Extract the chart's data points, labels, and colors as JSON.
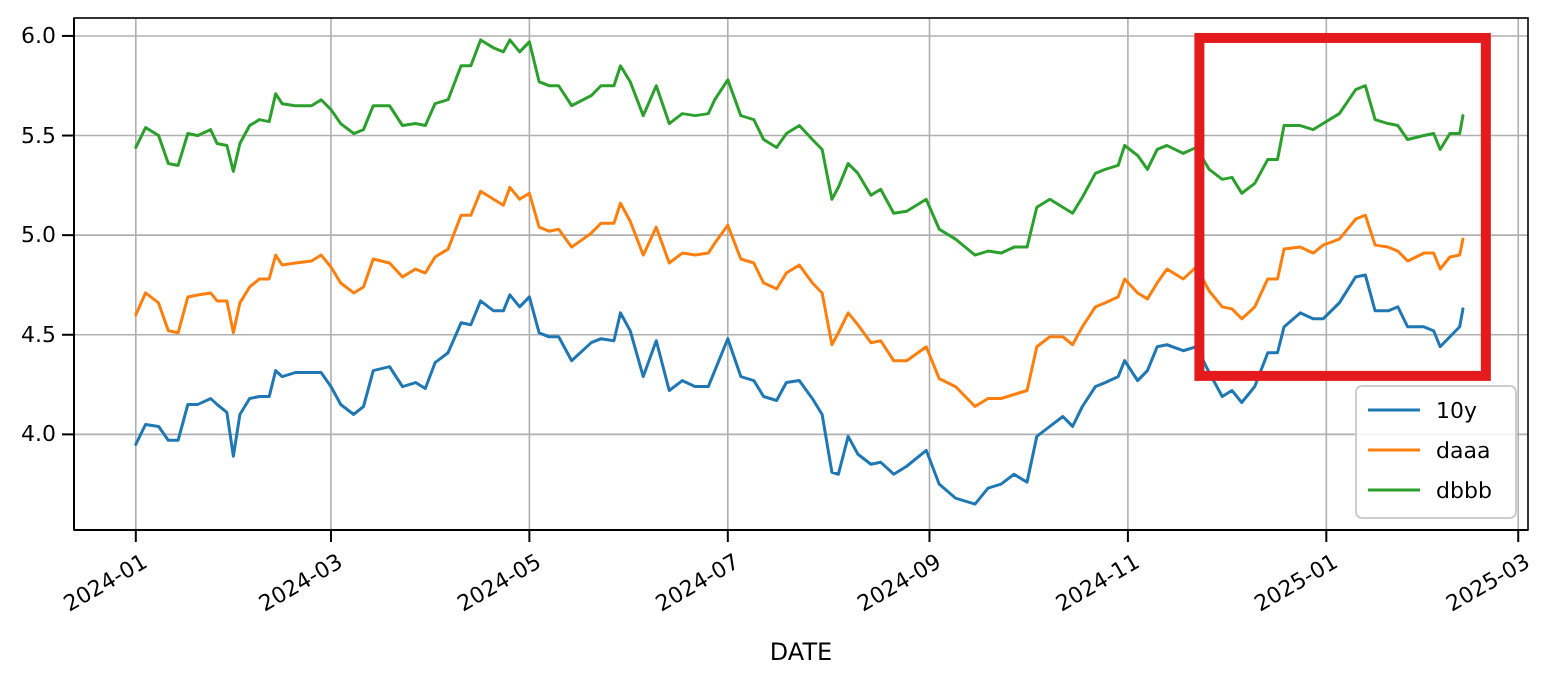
{
  "chart_data": {
    "type": "line",
    "xlabel": "DATE",
    "legend": "bottom right",
    "grid": true,
    "xlim": [
      "2023-12-13",
      "2025-03-04"
    ],
    "ylim": [
      3.52,
      6.09
    ],
    "xticks": [
      "2024-01",
      "2024-03",
      "2024-05",
      "2024-07",
      "2024-09",
      "2024-11",
      "2025-01",
      "2025-03"
    ],
    "yticks": [
      {
        "value": 4,
        "label": "4.0"
      },
      4.5,
      {
        "value": 5,
        "label": "5.0"
      },
      5.5,
      {
        "value": 6,
        "label": "6.0"
      }
    ],
    "x": [
      "2024-01-01",
      "2024-01-04",
      "2024-01-08",
      "2024-01-11",
      "2024-01-14",
      "2024-01-17",
      "2024-01-20",
      "2024-01-24",
      "2024-01-26",
      "2024-01-29",
      "2024-01-31",
      "2024-02-02",
      "2024-02-05",
      "2024-02-08",
      "2024-02-11",
      "2024-02-13",
      "2024-02-15",
      "2024-02-19",
      "2024-02-24",
      "2024-02-27",
      "2024-03-01",
      "2024-03-04",
      "2024-03-08",
      "2024-03-11",
      "2024-03-14",
      "2024-03-19",
      "2024-03-23",
      "2024-03-27",
      "2024-03-30",
      "2024-04-02",
      "2024-04-06",
      "2024-04-10",
      "2024-04-13",
      "2024-04-16",
      "2024-04-20",
      "2024-04-23",
      "2024-04-25",
      "2024-04-28",
      "2024-05-01",
      "2024-05-04",
      "2024-05-07",
      "2024-05-10",
      "2024-05-14",
      "2024-05-20",
      "2024-05-23",
      "2024-05-27",
      "2024-05-29",
      "2024-06-01",
      "2024-06-05",
      "2024-06-09",
      "2024-06-13",
      "2024-06-17",
      "2024-06-21",
      "2024-06-25",
      "2024-06-27",
      "2024-07-01",
      "2024-07-05",
      "2024-07-09",
      "2024-07-12",
      "2024-07-16",
      "2024-07-19",
      "2024-07-23",
      "2024-07-27",
      "2024-07-30",
      "2024-08-02",
      "2024-08-04",
      "2024-08-07",
      "2024-08-10",
      "2024-08-14",
      "2024-08-17",
      "2024-08-21",
      "2024-08-25",
      "2024-08-31",
      "2024-09-04",
      "2024-09-09",
      "2024-09-15",
      "2024-09-19",
      "2024-09-23",
      "2024-09-27",
      "2024-10-01",
      "2024-10-04",
      "2024-10-08",
      "2024-10-12",
      "2024-10-15",
      "2024-10-18",
      "2024-10-22",
      "2024-10-25",
      "2024-10-29",
      "2024-10-31",
      "2024-11-04",
      "2024-11-07",
      "2024-11-10",
      "2024-11-13",
      "2024-11-18",
      "2024-11-22",
      "2024-11-26",
      "2024-11-30",
      "2024-12-03",
      "2024-12-06",
      "2024-12-10",
      "2024-12-14",
      "2024-12-17",
      "2024-12-19",
      "2024-12-24",
      "2024-12-28",
      "2024-12-31",
      "2025-01-05",
      "2025-01-10",
      "2025-01-13",
      "2025-01-16",
      "2025-01-20",
      "2025-01-23",
      "2025-01-26",
      "2025-01-31",
      "2025-02-03",
      "2025-02-05",
      "2025-02-08",
      "2025-02-11",
      "2025-02-12"
    ],
    "series": [
      {
        "name": "10y",
        "color": "#1f77b4",
        "values": [
          3.95,
          4.05,
          4.04,
          3.97,
          3.97,
          4.15,
          4.15,
          4.18,
          4.15,
          4.11,
          3.89,
          4.1,
          4.18,
          4.19,
          4.19,
          4.32,
          4.29,
          4.31,
          4.31,
          4.31,
          4.24,
          4.15,
          4.1,
          4.14,
          4.32,
          4.34,
          4.24,
          4.26,
          4.23,
          4.36,
          4.41,
          4.56,
          4.55,
          4.67,
          4.62,
          4.62,
          4.7,
          4.64,
          4.69,
          4.51,
          4.49,
          4.49,
          4.37,
          4.46,
          4.48,
          4.47,
          4.61,
          4.52,
          4.29,
          4.47,
          4.22,
          4.27,
          4.24,
          4.24,
          4.32,
          4.48,
          4.29,
          4.27,
          4.19,
          4.17,
          4.26,
          4.27,
          4.18,
          4.1,
          3.81,
          3.8,
          3.99,
          3.9,
          3.85,
          3.86,
          3.8,
          3.84,
          3.92,
          3.75,
          3.68,
          3.65,
          3.73,
          3.75,
          3.8,
          3.76,
          3.99,
          4.04,
          4.09,
          4.04,
          4.14,
          4.24,
          4.26,
          4.29,
          4.37,
          4.27,
          4.32,
          4.44,
          4.45,
          4.42,
          4.44,
          4.31,
          4.19,
          4.22,
          4.16,
          4.24,
          4.41,
          4.41,
          4.54,
          4.61,
          4.58,
          4.58,
          4.66,
          4.79,
          4.8,
          4.62,
          4.62,
          4.64,
          4.54,
          4.54,
          4.52,
          4.44,
          4.49,
          4.54,
          4.63
        ]
      },
      {
        "name": "daaa",
        "color": "#ff7f0e",
        "values": [
          4.6,
          4.71,
          4.66,
          4.52,
          4.51,
          4.69,
          4.7,
          4.71,
          4.67,
          4.67,
          4.51,
          4.66,
          4.74,
          4.78,
          4.78,
          4.9,
          4.85,
          4.86,
          4.87,
          4.9,
          4.84,
          4.76,
          4.71,
          4.74,
          4.88,
          4.86,
          4.79,
          4.83,
          4.81,
          4.89,
          4.93,
          5.1,
          5.1,
          5.22,
          5.18,
          5.15,
          5.24,
          5.18,
          5.21,
          5.04,
          5.02,
          5.03,
          4.94,
          5.01,
          5.06,
          5.06,
          5.16,
          5.07,
          4.9,
          5.04,
          4.86,
          4.91,
          4.9,
          4.91,
          4.96,
          5.05,
          4.88,
          4.86,
          4.76,
          4.73,
          4.81,
          4.85,
          4.76,
          4.71,
          4.45,
          4.51,
          4.61,
          4.55,
          4.46,
          4.47,
          4.37,
          4.37,
          4.44,
          4.28,
          4.24,
          4.14,
          4.18,
          4.18,
          4.2,
          4.22,
          4.44,
          4.49,
          4.49,
          4.45,
          4.54,
          4.64,
          4.66,
          4.69,
          4.78,
          4.71,
          4.68,
          4.76,
          4.83,
          4.78,
          4.84,
          4.72,
          4.64,
          4.63,
          4.58,
          4.64,
          4.78,
          4.78,
          4.93,
          4.94,
          4.91,
          4.95,
          4.98,
          5.08,
          5.1,
          4.95,
          4.94,
          4.92,
          4.87,
          4.91,
          4.91,
          4.83,
          4.89,
          4.9,
          4.98
        ]
      },
      {
        "name": "dbbb",
        "color": "#2ca02c",
        "values": [
          5.44,
          5.54,
          5.5,
          5.36,
          5.35,
          5.51,
          5.5,
          5.53,
          5.46,
          5.45,
          5.32,
          5.46,
          5.55,
          5.58,
          5.57,
          5.71,
          5.66,
          5.65,
          5.65,
          5.68,
          5.63,
          5.56,
          5.51,
          5.53,
          5.65,
          5.65,
          5.55,
          5.56,
          5.55,
          5.66,
          5.68,
          5.85,
          5.85,
          5.98,
          5.94,
          5.92,
          5.98,
          5.92,
          5.97,
          5.77,
          5.75,
          5.75,
          5.65,
          5.7,
          5.75,
          5.75,
          5.85,
          5.77,
          5.6,
          5.75,
          5.56,
          5.61,
          5.6,
          5.61,
          5.68,
          5.78,
          5.6,
          5.58,
          5.48,
          5.44,
          5.51,
          5.55,
          5.48,
          5.43,
          5.18,
          5.24,
          5.36,
          5.31,
          5.2,
          5.23,
          5.11,
          5.12,
          5.18,
          5.03,
          4.98,
          4.9,
          4.92,
          4.91,
          4.94,
          4.94,
          5.14,
          5.18,
          5.14,
          5.11,
          5.19,
          5.31,
          5.33,
          5.35,
          5.45,
          5.4,
          5.33,
          5.43,
          5.45,
          5.41,
          5.44,
          5.33,
          5.28,
          5.29,
          5.21,
          5.26,
          5.38,
          5.38,
          5.55,
          5.55,
          5.53,
          5.56,
          5.61,
          5.73,
          5.75,
          5.58,
          5.56,
          5.55,
          5.48,
          5.5,
          5.51,
          5.43,
          5.51,
          5.51,
          5.6
        ]
      }
    ]
  }
}
